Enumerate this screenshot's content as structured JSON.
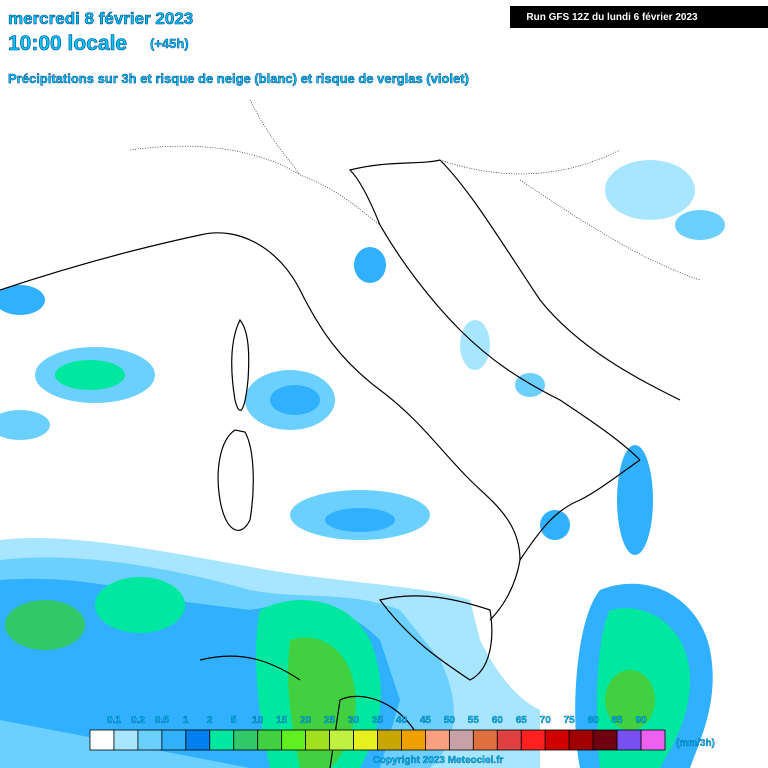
{
  "header": {
    "date": "mercredi 8 février 2023",
    "time": "10:00 locale",
    "offset": "(+45h)",
    "subtitle": "Précipitations sur 3h et risque de neige (blanc) et risque de verglas (violet)",
    "run": "Run GFS 12Z du lundi 6 février 2023"
  },
  "legend": {
    "labels": [
      "0.1",
      "0.2",
      "0.5",
      "1",
      "2",
      "5",
      "10",
      "15",
      "20",
      "25",
      "30",
      "35",
      "40",
      "45",
      "50",
      "55",
      "60",
      "65",
      "70",
      "75",
      "80",
      "85",
      "90"
    ],
    "colors": [
      "#ffffff",
      "#a8e6ff",
      "#6cd0ff",
      "#30b0ff",
      "#0080f0",
      "#00e8a0",
      "#30c868",
      "#40d040",
      "#60f020",
      "#a0e020",
      "#c0f040",
      "#e8f020",
      "#c8a800",
      "#f0a000",
      "#f8a080",
      "#c8a0a8",
      "#e07040",
      "#e04040",
      "#ff2020",
      "#d00000",
      "#a00000",
      "#700010",
      "#7850f0",
      "#f060f0"
    ],
    "unit": "(mm/3h)"
  },
  "footer": {
    "copyright": "Copyright 2023 Meteociel.fr"
  }
}
